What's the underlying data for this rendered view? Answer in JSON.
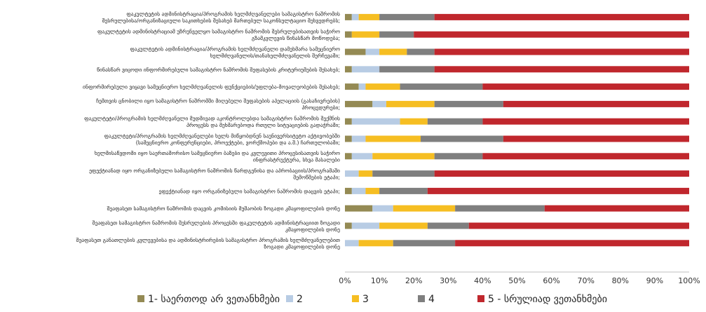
{
  "chart_data": {
    "type": "bar",
    "stacked": true,
    "orientation": "horizontal",
    "grid": false,
    "legend_position": "bottom",
    "xlim": [
      0,
      100
    ],
    "x_ticks": [
      "0%",
      "10%",
      "20%",
      "30%",
      "40%",
      "50%",
      "60%",
      "70%",
      "80%",
      "90%",
      "100%"
    ],
    "categories": [
      "ფაკულტეტის ადმინისტრაცია/პროგრამის ხელმძღვანელები სამაგისტრო ნაშრომის შესრულებისა/ორგანიზაციული საკითხების შესახებ მართებულ საკონსულტაციო შეხვედრებს;",
      "ფაკულტეტის ადმინისტრაციამ უზრუნველყო სამაგისტრო ნაშრომის შესრულებისათვის საჭირო გზამკვლევის წინასწარ მოწოდება;",
      "ფაკულტეტის ადმინისტრაცია/პროგრამის ხელმძღვანელი დამეხმარა სამეცნიერო ხელმძღვანელის/თანახელმძღვანელის შერჩევაში;",
      "წინასწარ ვიცოდი ინფორმირებული სამაგისტრო ნაშრომის შეფასების კრიტერიუმების შესახებ;",
      "ინფორმირებული ვიყავი სამეცნიერო ხელმძღვანელის ფუნქციების/უფლება-მოვალეობების შესახებ;",
      "ჩემთვის ცნობილი იყო სამაგისტრო ნაშრომში მიღებული შეფასების აპელაციის (გასაჩივრების) პროცედურები;",
      "ფაკულტეტი/პროგრამის ხელმძღვანელი მუდმივად აკონტროლებდა სამაგისტრო ნაშრომის შექმნის პროცესს და მეხმარებოდა რთული სიტუაციების გადაჭრაში;",
      "ფაკულტეტი/პროგრამის ხელმძღვანელები ხელს მიწყობდნენ საუნივერსიტეტო აქტივობებში (სამეცნიერო კონფერენციები, პროექტები, ვორქშოპები და ა.შ.) ჩართულობაში;",
      "ხელმისაწვდომი იყო საერთაშორისო სამეცნიერო ბაზები და კვლევითი პროცესისათვის საჭირო ინფრასტრუქტურა, სხვა მასალები",
      "ეფექტიანად იყო ორგანიზებული სამაგისტრო ნაშრომის წარდგენისა და აპრობაციის/პროგრამაში შემოწმების ეტაპი;",
      "ეფექტიანად იყო ორგანიზებული სამაგისტრო ნაშრომის დაცვის ეტაპი;",
      "შეაფასეთ სამაგისტრო ნაშრომის დაცვის კომისიის მუშაობის ზოგადი კმაყოფილების დონე",
      "შეაფასეთ სამაგისტრო ნაშრომის შესრულების პროცესში ფაკულტეტის ადმინისტრაციით ზოგადი კმაყოფილების დონე",
      "შეაფასეთ განათლების კვლევებისა და ადმინისტრირების სამაგისტრო პროგრამის ხელმძღვანელებით ზოგადი კმაყოფილების დონე"
    ],
    "series": [
      {
        "name": "1- საერთოდ არ ვეთანხმები",
        "color": "#948a54",
        "values": [
          2,
          2,
          6,
          2,
          4,
          8,
          2,
          2,
          2,
          0,
          2,
          8,
          2,
          0
        ]
      },
      {
        "name": "2",
        "color": "#b8cce4",
        "values": [
          2,
          0,
          4,
          8,
          2,
          4,
          14,
          4,
          6,
          4,
          4,
          6,
          8,
          4
        ]
      },
      {
        "name": "3",
        "color": "#f6be22",
        "values": [
          6,
          8,
          8,
          0,
          10,
          14,
          8,
          16,
          18,
          4,
          4,
          18,
          14,
          10
        ]
      },
      {
        "name": "4",
        "color": "#7f7f7f",
        "values": [
          16,
          10,
          8,
          16,
          24,
          20,
          16,
          24,
          14,
          18,
          14,
          26,
          12,
          18
        ]
      },
      {
        "name": "5 - სრულიად ვეთანხმები",
        "color": "#c0272d",
        "values": [
          74,
          80,
          74,
          74,
          60,
          54,
          60,
          54,
          60,
          74,
          76,
          42,
          64,
          68
        ]
      }
    ]
  }
}
